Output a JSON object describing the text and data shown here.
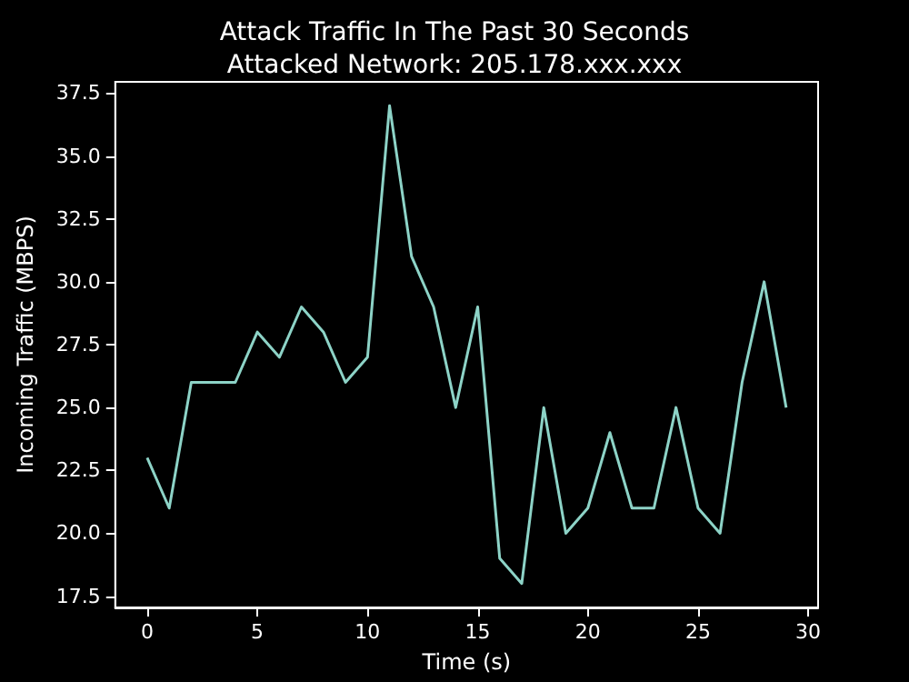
{
  "chart_data": {
    "type": "line",
    "title": "Attack Traffic In The Past 30 Seconds",
    "subtitle": "Attacked Network: 205.178.xxx.xxx",
    "xlabel": "Time (s)",
    "ylabel": "Incoming Traffic (MBPS)",
    "x": [
      0,
      1,
      2,
      3,
      4,
      5,
      6,
      7,
      8,
      9,
      10,
      11,
      12,
      13,
      14,
      15,
      16,
      17,
      18,
      19,
      20,
      21,
      22,
      23,
      24,
      25,
      26,
      27,
      28,
      29
    ],
    "series": [
      {
        "color": "#8dd3c7",
        "values": [
          23,
          21,
          26,
          26,
          26,
          28,
          27,
          29,
          28,
          26,
          27,
          37,
          31,
          29,
          25,
          29,
          19,
          18,
          25,
          20,
          21,
          24,
          21,
          21,
          25,
          21,
          20,
          26,
          30,
          25
        ]
      }
    ],
    "xlim": [
      -1.45,
      30.45
    ],
    "xticks": [
      0,
      5,
      10,
      15,
      20,
      25,
      30
    ],
    "ylim": [
      17.05,
      37.95
    ],
    "yticks": [
      {
        "value": 17.5,
        "label": "17.5"
      },
      {
        "value": 20,
        "label": "20.0"
      },
      {
        "value": 22.5,
        "label": "22.5"
      },
      {
        "value": 25,
        "label": "25.0"
      },
      {
        "value": 27.5,
        "label": "27.5"
      },
      {
        "value": 30,
        "label": "30.0"
      },
      {
        "value": 32.5,
        "label": "32.5"
      },
      {
        "value": 35,
        "label": "35.0"
      },
      {
        "value": 37.5,
        "label": "37.5"
      }
    ],
    "grid": false,
    "marker": "none",
    "line_style": "solid"
  }
}
